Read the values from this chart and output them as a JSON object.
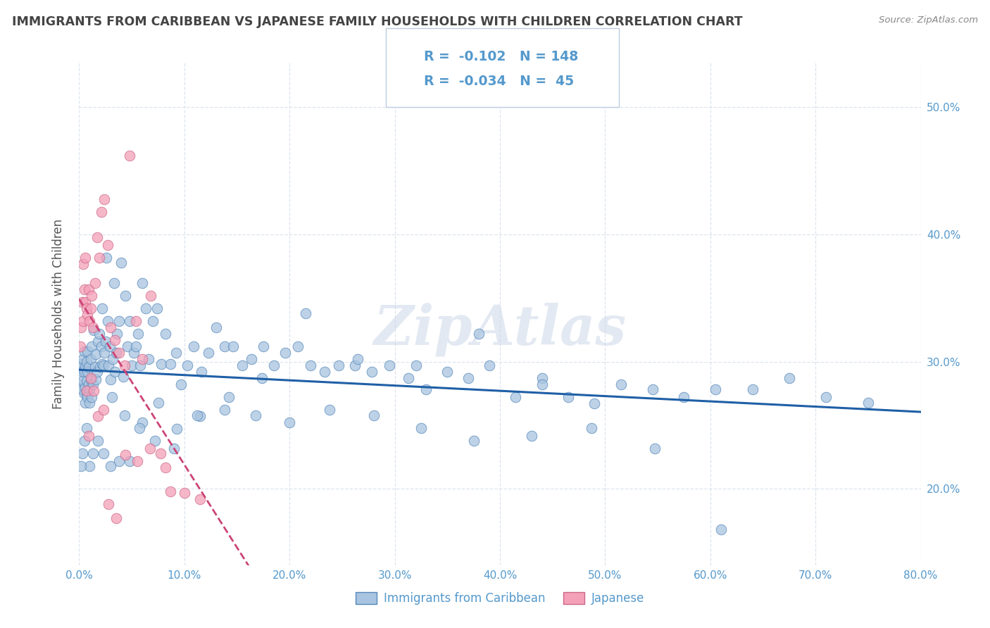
{
  "title": "IMMIGRANTS FROM CARIBBEAN VS JAPANESE FAMILY HOUSEHOLDS WITH CHILDREN CORRELATION CHART",
  "source": "Source: ZipAtlas.com",
  "ylabel": "Family Households with Children",
  "watermark": "ZipAtlas",
  "legend_blue_label": "Immigrants from Caribbean",
  "legend_pink_label": "Japanese",
  "blue_R": -0.102,
  "blue_N": 148,
  "pink_R": -0.034,
  "pink_N": 45,
  "xlim": [
    0.0,
    0.8
  ],
  "ylim": [
    0.14,
    0.535
  ],
  "xticks": [
    0.0,
    0.1,
    0.2,
    0.3,
    0.4,
    0.5,
    0.6,
    0.7,
    0.8
  ],
  "yticks": [
    0.2,
    0.3,
    0.4,
    0.5
  ],
  "blue_color": "#a8c4e0",
  "blue_edge_color": "#5588bb",
  "blue_line_color": "#1f5fa6",
  "pink_color": "#f4a0b8",
  "pink_edge_color": "#cc6688",
  "pink_line_color": "#cc4477",
  "title_color": "#444444",
  "axis_label_color": "#555555",
  "tick_color": "#5599cc",
  "grid_color": "#dde4ee",
  "bg_color": "#ffffff",
  "watermark_color": "#ccd8e8",
  "blue_scatter_x": [
    0.001,
    0.002,
    0.002,
    0.003,
    0.003,
    0.004,
    0.004,
    0.005,
    0.005,
    0.005,
    0.006,
    0.006,
    0.006,
    0.007,
    0.007,
    0.007,
    0.008,
    0.008,
    0.008,
    0.009,
    0.009,
    0.01,
    0.01,
    0.011,
    0.011,
    0.012,
    0.012,
    0.013,
    0.014,
    0.015,
    0.016,
    0.016,
    0.017,
    0.018,
    0.019,
    0.02,
    0.021,
    0.022,
    0.022,
    0.023,
    0.024,
    0.025,
    0.026,
    0.027,
    0.028,
    0.029,
    0.03,
    0.031,
    0.032,
    0.033,
    0.034,
    0.035,
    0.036,
    0.038,
    0.04,
    0.042,
    0.044,
    0.046,
    0.048,
    0.05,
    0.052,
    0.054,
    0.056,
    0.058,
    0.06,
    0.063,
    0.066,
    0.07,
    0.074,
    0.078,
    0.082,
    0.087,
    0.092,
    0.097,
    0.103,
    0.109,
    0.116,
    0.123,
    0.13,
    0.138,
    0.146,
    0.155,
    0.164,
    0.174,
    0.185,
    0.196,
    0.208,
    0.22,
    0.233,
    0.247,
    0.262,
    0.278,
    0.295,
    0.313,
    0.33,
    0.35,
    0.37,
    0.39,
    0.415,
    0.44,
    0.465,
    0.49,
    0.515,
    0.545,
    0.575,
    0.605,
    0.64,
    0.675,
    0.71,
    0.75,
    0.44,
    0.38,
    0.32,
    0.265,
    0.215,
    0.175,
    0.142,
    0.115,
    0.093,
    0.075,
    0.06,
    0.048,
    0.038,
    0.03,
    0.023,
    0.018,
    0.013,
    0.01,
    0.007,
    0.005,
    0.003,
    0.002,
    0.043,
    0.057,
    0.072,
    0.09,
    0.112,
    0.138,
    0.168,
    0.2,
    0.238,
    0.28,
    0.325,
    0.375,
    0.43,
    0.487,
    0.547,
    0.61
  ],
  "blue_scatter_y": [
    0.295,
    0.282,
    0.298,
    0.278,
    0.292,
    0.285,
    0.302,
    0.275,
    0.292,
    0.308,
    0.28,
    0.296,
    0.268,
    0.285,
    0.3,
    0.275,
    0.272,
    0.292,
    0.308,
    0.282,
    0.296,
    0.278,
    0.268,
    0.302,
    0.286,
    0.272,
    0.312,
    0.282,
    0.325,
    0.296,
    0.286,
    0.306,
    0.292,
    0.316,
    0.322,
    0.296,
    0.312,
    0.342,
    0.298,
    0.297,
    0.307,
    0.316,
    0.382,
    0.332,
    0.297,
    0.312,
    0.286,
    0.272,
    0.302,
    0.362,
    0.292,
    0.307,
    0.322,
    0.332,
    0.378,
    0.288,
    0.352,
    0.312,
    0.332,
    0.297,
    0.307,
    0.312,
    0.322,
    0.297,
    0.362,
    0.342,
    0.302,
    0.332,
    0.342,
    0.298,
    0.322,
    0.298,
    0.307,
    0.282,
    0.297,
    0.312,
    0.292,
    0.307,
    0.327,
    0.312,
    0.312,
    0.297,
    0.302,
    0.287,
    0.297,
    0.307,
    0.312,
    0.297,
    0.292,
    0.297,
    0.297,
    0.292,
    0.297,
    0.287,
    0.278,
    0.292,
    0.287,
    0.297,
    0.272,
    0.287,
    0.272,
    0.267,
    0.282,
    0.278,
    0.272,
    0.278,
    0.278,
    0.287,
    0.272,
    0.268,
    0.282,
    0.322,
    0.297,
    0.302,
    0.338,
    0.312,
    0.272,
    0.257,
    0.247,
    0.268,
    0.252,
    0.222,
    0.222,
    0.218,
    0.228,
    0.238,
    0.228,
    0.218,
    0.248,
    0.238,
    0.228,
    0.218,
    0.258,
    0.248,
    0.238,
    0.232,
    0.258,
    0.262,
    0.258,
    0.252,
    0.262,
    0.258,
    0.248,
    0.238,
    0.242,
    0.248,
    0.232,
    0.168
  ],
  "pink_scatter_x": [
    0.001,
    0.002,
    0.003,
    0.004,
    0.004,
    0.005,
    0.006,
    0.006,
    0.007,
    0.008,
    0.009,
    0.01,
    0.011,
    0.012,
    0.013,
    0.015,
    0.017,
    0.019,
    0.021,
    0.024,
    0.027,
    0.03,
    0.034,
    0.038,
    0.043,
    0.048,
    0.054,
    0.06,
    0.068,
    0.077,
    0.087,
    0.1,
    0.115,
    0.007,
    0.009,
    0.011,
    0.014,
    0.018,
    0.023,
    0.028,
    0.035,
    0.044,
    0.055,
    0.067,
    0.082
  ],
  "pink_scatter_y": [
    0.312,
    0.327,
    0.347,
    0.377,
    0.332,
    0.357,
    0.347,
    0.382,
    0.342,
    0.337,
    0.357,
    0.332,
    0.342,
    0.352,
    0.327,
    0.362,
    0.398,
    0.382,
    0.418,
    0.428,
    0.392,
    0.327,
    0.317,
    0.307,
    0.297,
    0.462,
    0.332,
    0.302,
    0.352,
    0.228,
    0.198,
    0.197,
    0.192,
    0.277,
    0.242,
    0.287,
    0.277,
    0.257,
    0.262,
    0.188,
    0.177,
    0.227,
    0.222,
    0.232,
    0.217
  ]
}
